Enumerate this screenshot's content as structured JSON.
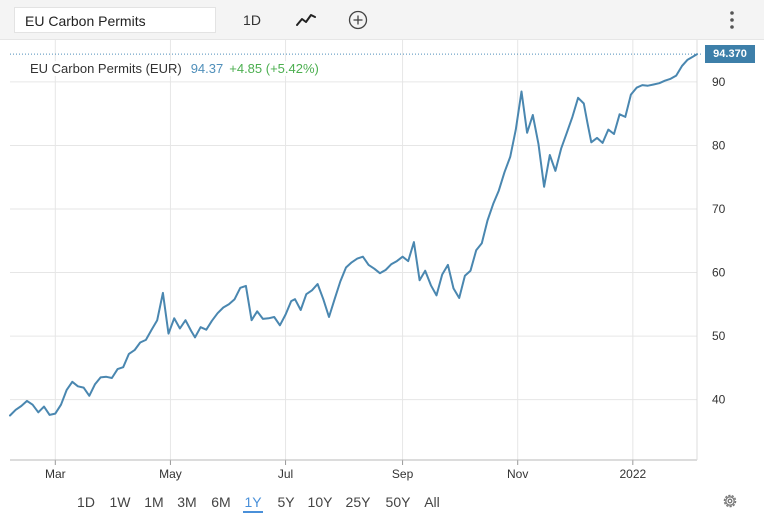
{
  "toolbar": {
    "symbol": "EU Carbon Permits",
    "period_label": "1D",
    "chart_type_icon": "line-chart-icon",
    "compare_icon": "plus-circle-icon",
    "menu_icon": "vertical-dots-icon"
  },
  "legend": {
    "name": "EU Carbon Permits (EUR)",
    "price": "94.37",
    "change": "+4.85 (+5.42%)"
  },
  "last_price_tag": "94.370",
  "range_buttons": [
    "1D",
    "1W",
    "1M",
    "3M",
    "6M",
    "1Y",
    "5Y",
    "10Y",
    "25Y",
    "50Y",
    "All"
  ],
  "active_range": "1Y",
  "settings_icon": "gear-icon",
  "colors": {
    "line": "#4a87b0",
    "price_text": "#4f8fba",
    "change_text": "#4caf50",
    "price_tag_bg": "#3d7fa9",
    "active_range": "#4a90d9",
    "grid": "#e6e6e6"
  },
  "chart_data": {
    "type": "line",
    "title": "EU Carbon Permits (EUR)",
    "xlabel": "",
    "ylabel": "",
    "x_tick_labels": [
      "Mar",
      "May",
      "Jul",
      "Sep",
      "Nov",
      "2022"
    ],
    "y_ticks": [
      40,
      50,
      60,
      70,
      80,
      90
    ],
    "ylim": [
      30.5,
      96.6
    ],
    "grid": true,
    "y_axis_side": "right",
    "last_value": 94.37,
    "series": [
      {
        "name": "EU Carbon Permits (EUR)",
        "x": [
          "2021-02-05",
          "2021-02-08",
          "2021-02-11",
          "2021-02-14",
          "2021-02-17",
          "2021-02-20",
          "2021-02-23",
          "2021-02-26",
          "2021-03-01",
          "2021-03-04",
          "2021-03-07",
          "2021-03-10",
          "2021-03-13",
          "2021-03-16",
          "2021-03-19",
          "2021-03-22",
          "2021-03-25",
          "2021-03-28",
          "2021-03-31",
          "2021-04-03",
          "2021-04-06",
          "2021-04-09",
          "2021-04-12",
          "2021-04-15",
          "2021-04-18",
          "2021-04-21",
          "2021-04-24",
          "2021-04-27",
          "2021-04-30",
          "2021-05-03",
          "2021-05-06",
          "2021-05-09",
          "2021-05-12",
          "2021-05-14",
          "2021-05-17",
          "2021-05-20",
          "2021-05-23",
          "2021-05-26",
          "2021-05-29",
          "2021-06-01",
          "2021-06-04",
          "2021-06-07",
          "2021-06-10",
          "2021-06-13",
          "2021-06-16",
          "2021-06-19",
          "2021-06-22",
          "2021-06-25",
          "2021-06-28",
          "2021-07-01",
          "2021-07-04",
          "2021-07-06",
          "2021-07-09",
          "2021-07-12",
          "2021-07-15",
          "2021-07-18",
          "2021-07-21",
          "2021-07-24",
          "2021-07-27",
          "2021-07-30",
          "2021-08-02",
          "2021-08-05",
          "2021-08-08",
          "2021-08-11",
          "2021-08-14",
          "2021-08-17",
          "2021-08-20",
          "2021-08-23",
          "2021-08-26",
          "2021-08-29",
          "2021-09-01",
          "2021-09-04",
          "2021-09-07",
          "2021-09-10",
          "2021-09-13",
          "2021-09-16",
          "2021-09-19",
          "2021-09-22",
          "2021-09-25",
          "2021-09-28",
          "2021-10-01",
          "2021-10-04",
          "2021-10-07",
          "2021-10-10",
          "2021-10-13",
          "2021-10-16",
          "2021-10-19",
          "2021-10-22",
          "2021-10-25",
          "2021-10-28",
          "2021-10-31",
          "2021-11-03",
          "2021-11-06",
          "2021-11-09",
          "2021-11-12",
          "2021-11-15",
          "2021-11-18",
          "2021-11-21",
          "2021-11-24",
          "2021-11-27",
          "2021-11-30",
          "2021-12-03",
          "2021-12-06",
          "2021-12-08",
          "2021-12-10",
          "2021-12-13",
          "2021-12-16",
          "2021-12-19",
          "2021-12-22",
          "2021-12-25",
          "2021-12-28",
          "2021-12-31",
          "2022-01-03",
          "2022-01-06",
          "2022-01-09",
          "2022-01-12",
          "2022-01-15",
          "2022-01-18",
          "2022-01-21",
          "2022-01-24",
          "2022-01-27",
          "2022-01-30",
          "2022-02-02",
          "2022-02-04"
        ],
        "values": [
          37.5,
          38.4,
          39.0,
          39.8,
          39.2,
          38.0,
          38.9,
          37.6,
          37.8,
          39.2,
          41.5,
          42.8,
          42.1,
          41.9,
          40.6,
          42.4,
          43.5,
          43.6,
          43.4,
          44.8,
          45.1,
          47.2,
          47.8,
          49.0,
          49.4,
          51.0,
          52.5,
          56.8,
          50.4,
          52.8,
          51.2,
          52.5,
          50.8,
          49.8,
          51.4,
          51.0,
          52.4,
          53.6,
          54.5,
          55.0,
          55.8,
          57.6,
          57.9,
          52.5,
          53.9,
          52.7,
          52.8,
          53.0,
          51.7,
          53.4,
          55.5,
          55.8,
          54.1,
          56.6,
          57.2,
          58.2,
          55.8,
          53.0,
          55.8,
          58.6,
          60.8,
          61.6,
          62.2,
          62.5,
          61.2,
          60.6,
          59.9,
          60.4,
          61.3,
          61.8,
          62.5,
          61.8,
          64.8,
          58.8,
          60.3,
          58.0,
          56.4,
          59.7,
          61.2,
          57.5,
          56.0,
          59.5,
          60.3,
          63.5,
          64.6,
          68.2,
          70.8,
          72.9,
          75.8,
          78.2,
          82.5,
          88.5,
          82.0,
          84.8,
          80.2,
          73.5,
          78.5,
          76.0,
          79.5,
          82.0,
          84.5,
          87.5,
          86.6,
          83.5,
          80.5,
          81.2,
          80.4,
          82.5,
          81.8,
          84.9,
          84.5,
          88.0,
          89.1,
          89.5,
          89.4,
          89.6,
          89.8,
          90.2,
          90.5,
          91.0,
          92.5,
          93.5,
          94.0,
          94.37
        ]
      }
    ]
  }
}
